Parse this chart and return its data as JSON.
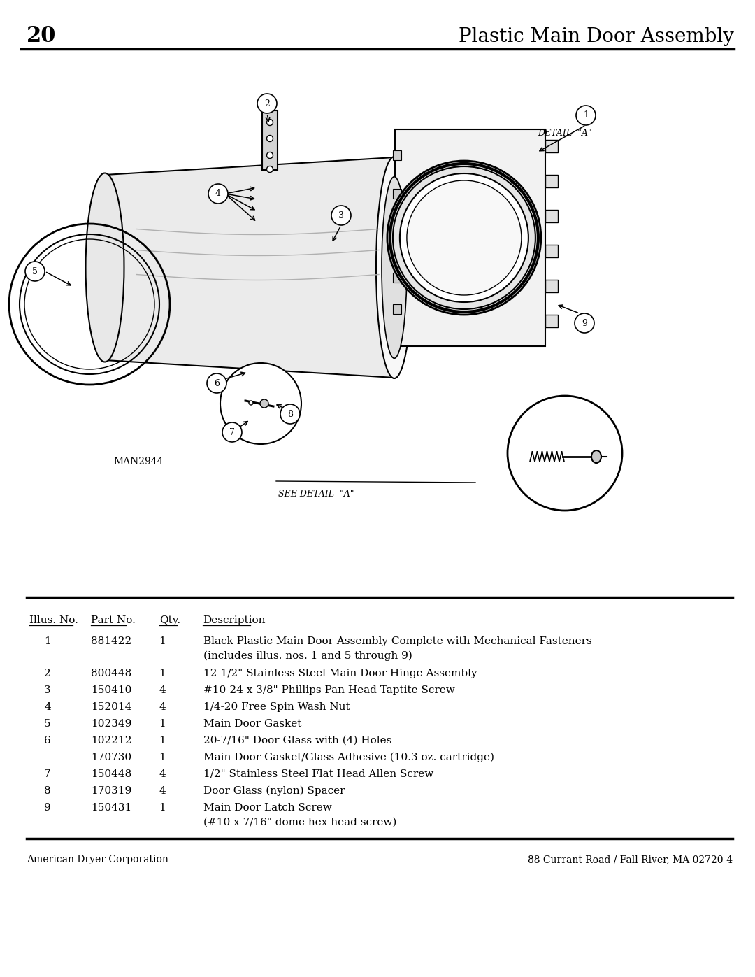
{
  "page_number": "20",
  "title": "Plastic Main Door Assembly",
  "drawing_label": "MAN2944",
  "detail_label": "DETAIL  \"A\"",
  "see_detail_label": "SEE DETAIL  \"A\"",
  "footer_left": "American Dryer Corporation",
  "footer_right": "88 Currant Road / Fall River, MA 02720-4",
  "table_headers": [
    "Illus. No.",
    "Part No.",
    "Qty.",
    "Description"
  ],
  "table_rows": [
    [
      "1",
      "881422",
      "1",
      "Black Plastic Main Door Assembly Complete with Mechanical Fasteners\n(includes illus. nos. 1 and 5 through 9)"
    ],
    [
      "2",
      "800448",
      "1",
      "12-1/2\" Stainless Steel Main Door Hinge Assembly"
    ],
    [
      "3",
      "150410",
      "4",
      "#10-24 x 3/8\" Phillips Pan Head Taptite Screw"
    ],
    [
      "4",
      "152014",
      "4",
      "1/4-20 Free Spin Wash Nut"
    ],
    [
      "5",
      "102349",
      "1",
      "Main Door Gasket"
    ],
    [
      "6",
      "102212",
      "1",
      "20-7/16\" Door Glass with (4) Holes"
    ],
    [
      "",
      "170730",
      "1",
      "Main Door Gasket/Glass Adhesive (10.3 oz. cartridge)"
    ],
    [
      "7",
      "150448",
      "4",
      "1/2\" Stainless Steel Flat Head Allen Screw"
    ],
    [
      "8",
      "170319",
      "4",
      "Door Glass (nylon) Spacer"
    ],
    [
      "9",
      "150431",
      "1",
      "Main Door Latch Screw\n(#10 x 7/16\" dome hex head screw)"
    ]
  ],
  "bg_color": "#ffffff",
  "text_color": "#000000",
  "line_color": "#000000"
}
